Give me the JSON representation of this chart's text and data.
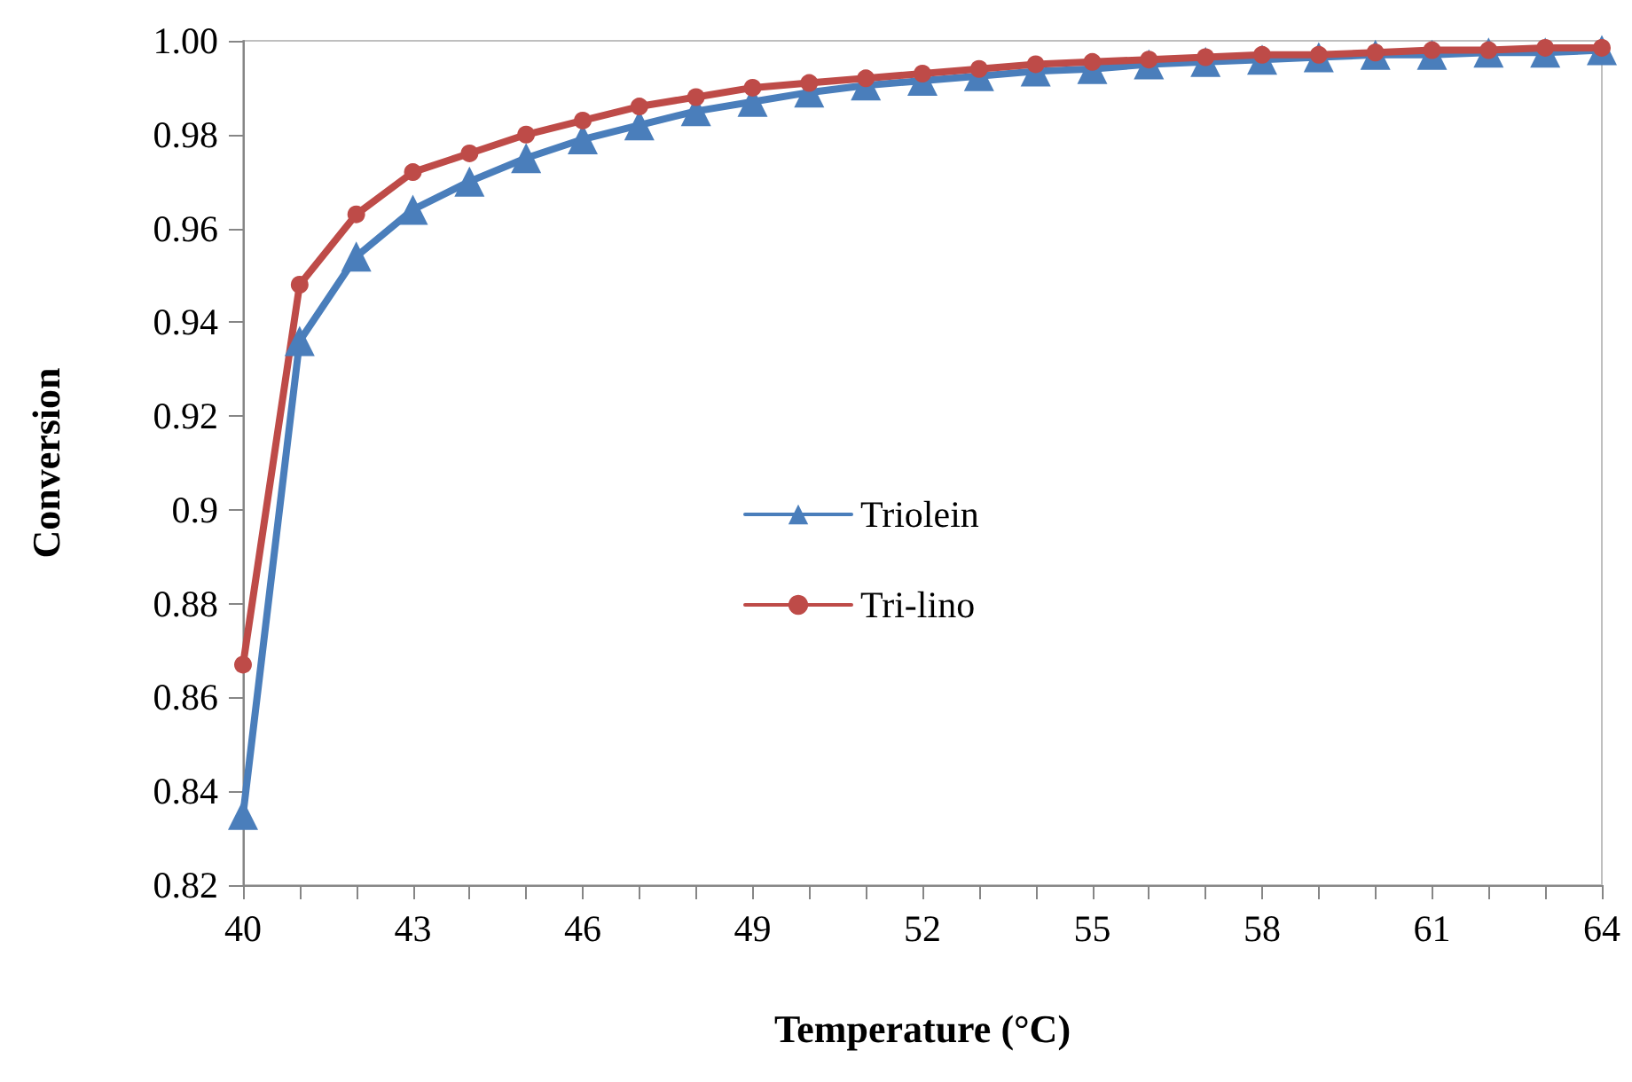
{
  "chart_data": {
    "type": "line",
    "xlabel": "Temperature (°C)",
    "ylabel": "Conversion",
    "x": [
      40,
      41,
      42,
      43,
      44,
      45,
      46,
      47,
      48,
      49,
      50,
      51,
      52,
      53,
      54,
      55,
      56,
      57,
      58,
      59,
      60,
      61,
      62,
      63,
      64
    ],
    "series": [
      {
        "name": "Triolein",
        "color": "#4a7ebb",
        "marker": "triangle",
        "values": [
          0.835,
          0.936,
          0.954,
          0.964,
          0.97,
          0.975,
          0.979,
          0.982,
          0.985,
          0.987,
          0.989,
          0.9905,
          0.9915,
          0.9925,
          0.9935,
          0.994,
          0.995,
          0.9955,
          0.996,
          0.9965,
          0.997,
          0.997,
          0.9975,
          0.9975,
          0.998
        ]
      },
      {
        "name": "Tri-lino",
        "color": "#be4b48",
        "marker": "circle",
        "values": [
          0.867,
          0.948,
          0.963,
          0.972,
          0.976,
          0.98,
          0.983,
          0.986,
          0.988,
          0.99,
          0.991,
          0.992,
          0.993,
          0.994,
          0.995,
          0.9955,
          0.996,
          0.9965,
          0.997,
          0.997,
          0.9975,
          0.998,
          0.998,
          0.9985,
          0.9985
        ]
      }
    ],
    "xlim": [
      40,
      64
    ],
    "xticks": [
      40,
      {
        "value": 41,
        "label": null
      },
      {
        "value": 42,
        "label": null
      },
      43,
      {
        "value": 44,
        "label": null
      },
      {
        "value": 45,
        "label": null
      },
      46,
      {
        "value": 47,
        "label": null
      },
      {
        "value": 48,
        "label": null
      },
      49,
      {
        "value": 50,
        "label": null
      },
      {
        "value": 51,
        "label": null
      },
      52,
      {
        "value": 53,
        "label": null
      },
      {
        "value": 54,
        "label": null
      },
      55,
      {
        "value": 56,
        "label": null
      },
      {
        "value": 57,
        "label": null
      },
      58,
      {
        "value": 59,
        "label": null
      },
      {
        "value": 60,
        "label": null
      },
      61,
      {
        "value": 62,
        "label": null
      },
      {
        "value": 63,
        "label": null
      },
      64
    ],
    "ylim": [
      0.82,
      1
    ],
    "yticks": [
      0.82,
      0.84,
      0.86,
      0.88,
      0.9,
      0.92,
      0.94,
      0.96,
      0.98,
      {
        "value": 1,
        "label": "1.00"
      }
    ],
    "legend": "center",
    "grid": false,
    "line_style": "solid"
  }
}
